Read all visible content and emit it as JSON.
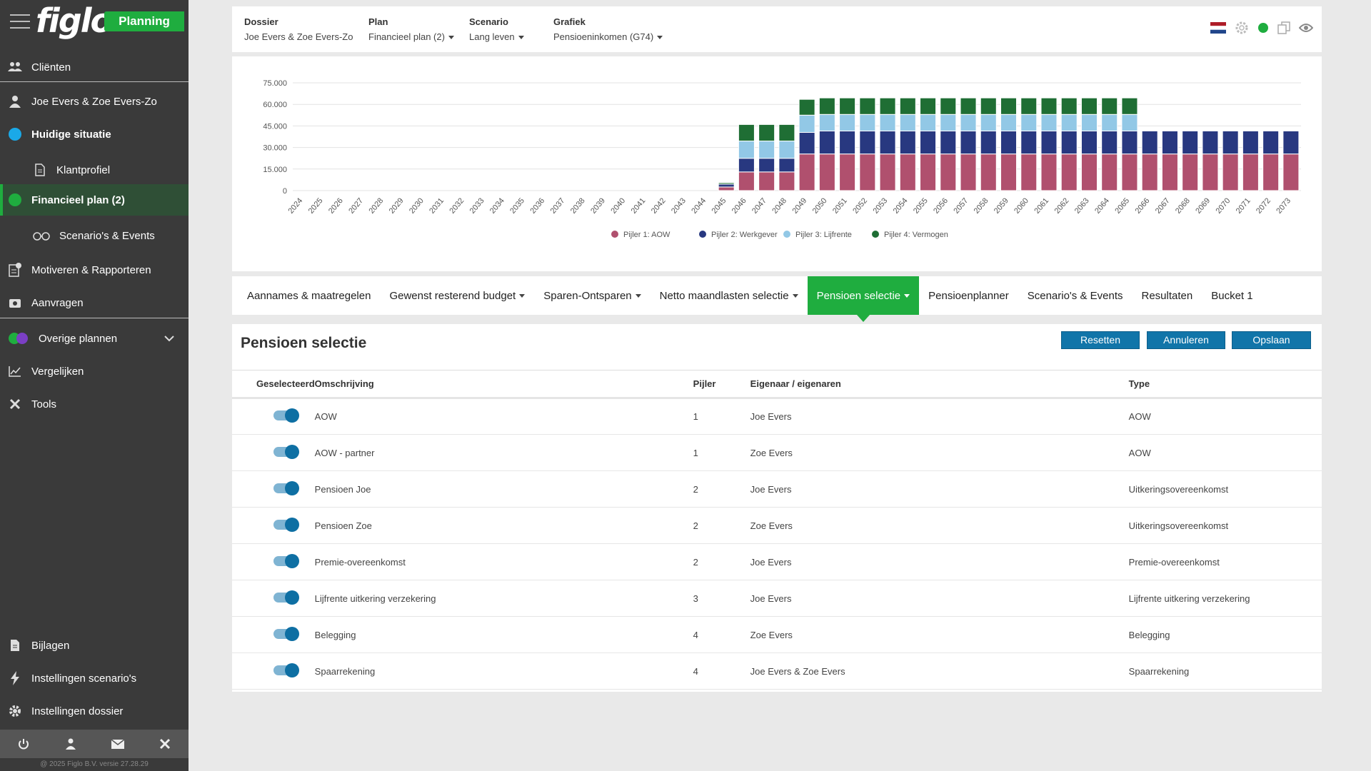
{
  "app": {
    "logo": "figlo",
    "badge": "Planning"
  },
  "sidebar": {
    "items": [
      {
        "label": "Cliënten",
        "icon": "users-icon"
      },
      {
        "label": "Joe Evers & Zoe Evers-Zo",
        "icon": "user-icon"
      },
      {
        "label": "Huidige situatie",
        "icon": "status-dot-blue",
        "color": "#1aa9e8"
      },
      {
        "label": "Klantprofiel",
        "icon": "document-icon"
      },
      {
        "label": "Financieel plan (2)",
        "icon": "status-dot-green",
        "color": "#1fad3f"
      },
      {
        "label": "Scenario's & Events",
        "icon": "glasses-icon"
      },
      {
        "label": "Motiveren & Rapporteren",
        "icon": "report-icon"
      },
      {
        "label": "Aanvragen",
        "icon": "apply-icon"
      },
      {
        "label": "Overige plannen",
        "icon": "multi-dot-icon"
      },
      {
        "label": "Vergelijken",
        "icon": "chart-line-icon"
      },
      {
        "label": "Tools",
        "icon": "tools-icon"
      },
      {
        "label": "Bijlagen",
        "icon": "attachment-icon"
      },
      {
        "label": "Instellingen scenario's",
        "icon": "bolt-icon"
      },
      {
        "label": "Instellingen dossier",
        "icon": "gear-icon"
      }
    ],
    "footer": "@ 2025 Figlo B.V. versie 27.28.29"
  },
  "header": {
    "dossier_label": "Dossier",
    "dossier_value": "Joe Evers & Zoe Evers-Zo",
    "plan_label": "Plan",
    "plan_value": "Financieel plan (2)",
    "scenario_label": "Scenario",
    "scenario_value": "Lang leven",
    "grafiek_label": "Grafiek",
    "grafiek_value": "Pensioeninkomen (G74)"
  },
  "colors": {
    "aow": "#b0506e",
    "werkgever": "#283880",
    "lijfrente": "#92c8e6",
    "vermogen": "#1f6e34",
    "accent": "#1fad3f",
    "button": "#1175a9"
  },
  "chart_data": {
    "type": "bar",
    "stacked": true,
    "categories": [
      "2024",
      "2025",
      "2026",
      "2027",
      "2028",
      "2029",
      "2030",
      "2031",
      "2032",
      "2033",
      "2034",
      "2035",
      "2036",
      "2037",
      "2038",
      "2039",
      "2040",
      "2041",
      "2042",
      "2043",
      "2044",
      "2045",
      "2046",
      "2047",
      "2048",
      "2049",
      "2050",
      "2051",
      "2052",
      "2053",
      "2054",
      "2055",
      "2056",
      "2057",
      "2058",
      "2059",
      "2060",
      "2061",
      "2062",
      "2063",
      "2064",
      "2065",
      "2066",
      "2067",
      "2068",
      "2069",
      "2070",
      "2071",
      "2072",
      "2073"
    ],
    "yticks": [
      "75.000",
      "60.000",
      "45.000",
      "30.000",
      "15.000",
      "0"
    ],
    "ylim": [
      0,
      75000
    ],
    "grid": true,
    "legend_position": "bottom",
    "series": [
      {
        "name": "Pijler 1: AOW",
        "color": "#b0506e",
        "values": [
          0,
          0,
          0,
          0,
          0,
          0,
          0,
          0,
          0,
          0,
          0,
          0,
          0,
          0,
          0,
          0,
          0,
          0,
          0,
          0,
          0,
          2500,
          13000,
          13000,
          13000,
          25500,
          25500,
          25500,
          25500,
          25500,
          25500,
          25500,
          25500,
          25500,
          25500,
          25500,
          25500,
          25500,
          25500,
          25500,
          25500,
          25500,
          25500,
          25500,
          25500,
          25500,
          25500,
          25500,
          25500,
          25500
        ]
      },
      {
        "name": "Pijler 2: Werkgever",
        "color": "#283880",
        "values": [
          0,
          0,
          0,
          0,
          0,
          0,
          0,
          0,
          0,
          0,
          0,
          0,
          0,
          0,
          0,
          0,
          0,
          0,
          0,
          0,
          0,
          2000,
          9500,
          9500,
          9500,
          15000,
          16000,
          16000,
          16000,
          16000,
          16000,
          16000,
          16000,
          16000,
          16000,
          16000,
          16000,
          16000,
          16000,
          16000,
          16000,
          16000,
          16000,
          16000,
          16000,
          16000,
          16000,
          16000,
          16000,
          16000
        ]
      },
      {
        "name": "Pijler 3: Lijfrente",
        "color": "#92c8e6",
        "values": [
          0,
          0,
          0,
          0,
          0,
          0,
          0,
          0,
          0,
          0,
          0,
          0,
          0,
          0,
          0,
          0,
          0,
          0,
          0,
          0,
          0,
          0,
          12000,
          12000,
          12000,
          12000,
          11500,
          11500,
          11500,
          11500,
          11500,
          11500,
          11500,
          11500,
          11500,
          11500,
          11500,
          11500,
          11500,
          11500,
          11500,
          11500,
          0,
          0,
          0,
          0,
          0,
          0,
          0,
          0
        ]
      },
      {
        "name": "Pijler 4: Vermogen",
        "color": "#1f6e34",
        "values": [
          0,
          0,
          0,
          0,
          0,
          0,
          0,
          0,
          0,
          0,
          0,
          0,
          0,
          0,
          0,
          0,
          0,
          0,
          0,
          0,
          0,
          1000,
          11500,
          11500,
          11500,
          11000,
          11500,
          11500,
          11500,
          11500,
          11500,
          11500,
          11500,
          11500,
          11500,
          11500,
          11500,
          11500,
          11500,
          11500,
          11500,
          11500,
          0,
          0,
          0,
          0,
          0,
          0,
          0,
          0
        ]
      }
    ]
  },
  "tabs": [
    {
      "label": "Aannames & maatregelen",
      "dropdown": false
    },
    {
      "label": "Gewenst resterend budget",
      "dropdown": true
    },
    {
      "label": "Sparen-Ontsparen",
      "dropdown": true
    },
    {
      "label": "Netto maandlasten selectie",
      "dropdown": true
    },
    {
      "label": "Pensioen selectie",
      "dropdown": true,
      "active": true
    },
    {
      "label": "Pensioenplanner",
      "dropdown": false
    },
    {
      "label": "Scenario's & Events",
      "dropdown": false
    },
    {
      "label": "Resultaten",
      "dropdown": false
    },
    {
      "label": "Bucket 1",
      "dropdown": false
    }
  ],
  "content": {
    "title": "Pensioen selectie",
    "buttons": {
      "reset": "Resetten",
      "cancel": "Annuleren",
      "save": "Opslaan"
    },
    "columns": [
      "Geselecteerd",
      "Omschrijving",
      "Pijler",
      "Eigenaar / eigenaren",
      "Type"
    ],
    "rows": [
      {
        "selected": true,
        "omschrijving": "AOW",
        "pijler": "1",
        "eigenaar": "Joe Evers",
        "type": "AOW"
      },
      {
        "selected": true,
        "omschrijving": "AOW - partner",
        "pijler": "1",
        "eigenaar": "Zoe Evers",
        "type": "AOW"
      },
      {
        "selected": true,
        "omschrijving": "Pensioen Joe",
        "pijler": "2",
        "eigenaar": "Joe Evers",
        "type": "Uitkeringsovereenkomst"
      },
      {
        "selected": true,
        "omschrijving": "Pensioen Zoe",
        "pijler": "2",
        "eigenaar": "Zoe Evers",
        "type": "Uitkeringsovereenkomst"
      },
      {
        "selected": true,
        "omschrijving": "Premie-overeenkomst",
        "pijler": "2",
        "eigenaar": "Joe Evers",
        "type": "Premie-overeenkomst"
      },
      {
        "selected": true,
        "omschrijving": "Lijfrente uitkering verzekering",
        "pijler": "3",
        "eigenaar": "Joe Evers",
        "type": "Lijfrente uitkering verzekering"
      },
      {
        "selected": true,
        "omschrijving": "Belegging",
        "pijler": "4",
        "eigenaar": "Zoe Evers",
        "type": "Belegging"
      },
      {
        "selected": true,
        "omschrijving": "Spaarrekening",
        "pijler": "4",
        "eigenaar": "Joe Evers & Zoe Evers",
        "type": "Spaarrekening"
      }
    ]
  }
}
